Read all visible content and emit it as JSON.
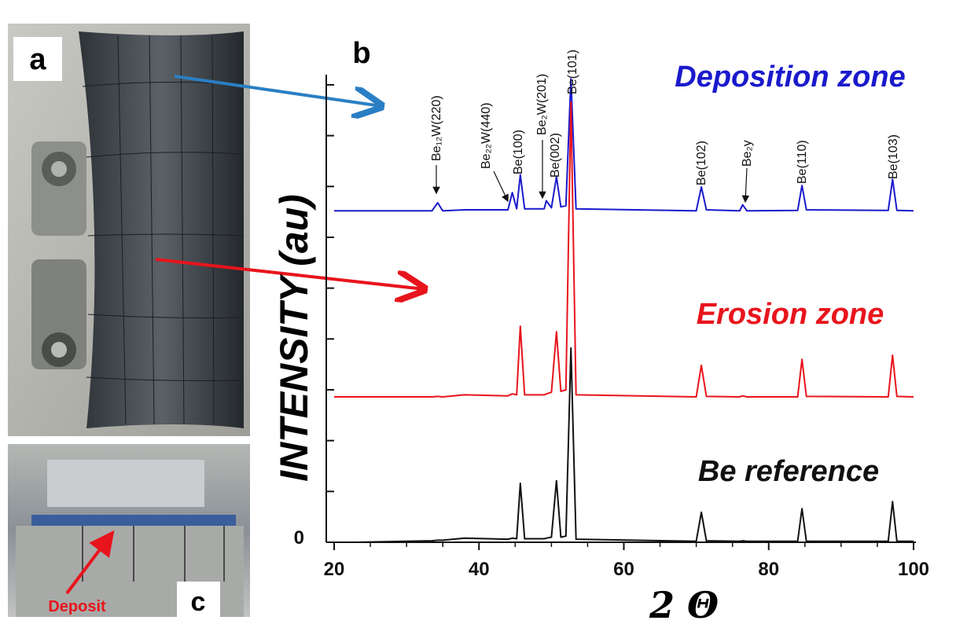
{
  "chart_data": {
    "type": "line",
    "panel_labels": [
      "a",
      "b",
      "c"
    ],
    "photo_label": "Deposit",
    "xlabel": "2 Θ",
    "ylabel": "INTENSITY (au)",
    "x": [
      20,
      23,
      33.5,
      34.3,
      35,
      38,
      44,
      44.6,
      45.2,
      45.7,
      46.3,
      49,
      49.3,
      50,
      50.7,
      51.3,
      52,
      52.7,
      53.4,
      70,
      70.7,
      71.4,
      76,
      76.4,
      77,
      84,
      84.6,
      85.2,
      96.5,
      97.1,
      97.7,
      100
    ],
    "series": [
      {
        "name": "Deposition zone",
        "color": "#1a1acc",
        "values": [
          6.52,
          6.52,
          6.52,
          6.68,
          6.52,
          6.54,
          6.54,
          6.88,
          6.56,
          7.23,
          6.56,
          6.56,
          6.72,
          6.58,
          7.19,
          6.6,
          6.62,
          9.12,
          6.56,
          6.52,
          6.99,
          6.54,
          6.52,
          6.64,
          6.52,
          6.53,
          7.02,
          6.54,
          6.53,
          7.14,
          6.53,
          6.52
        ]
      },
      {
        "name": "Erosion zone",
        "color": "#e8141c",
        "values": [
          2.86,
          2.86,
          2.86,
          2.87,
          2.86,
          2.9,
          2.88,
          2.92,
          2.9,
          4.25,
          2.9,
          2.9,
          2.92,
          2.95,
          4.14,
          2.97,
          3.0,
          8.66,
          2.9,
          2.86,
          3.48,
          2.87,
          2.86,
          2.88,
          2.86,
          2.86,
          3.6,
          2.87,
          2.86,
          3.68,
          2.87,
          2.86
        ]
      },
      {
        "name": "Be reference",
        "color": "#111111",
        "values": [
          null,
          0.0,
          0.03,
          0.04,
          0.04,
          0.08,
          0.06,
          0.08,
          0.07,
          1.16,
          0.07,
          0.07,
          0.08,
          0.1,
          1.21,
          0.1,
          0.12,
          3.82,
          0.06,
          0.02,
          0.59,
          0.03,
          0.02,
          0.03,
          0.02,
          0.02,
          0.66,
          0.02,
          0.02,
          0.8,
          0.02,
          0.02
        ]
      }
    ],
    "annotations": [
      "Be₁₂W(220)",
      "Be₂₂W(440)",
      "Be(100)",
      "Be₂W(201)",
      "Be(002)",
      "Be(101)",
      "Be(102)",
      "Be₂y",
      "Be(110)",
      "Be(103)"
    ],
    "xlim": [
      20,
      100
    ],
    "xticks": [
      20,
      40,
      60,
      80,
      100
    ],
    "xminorticks": [
      25,
      30,
      35,
      45,
      50,
      55,
      65,
      70,
      75,
      85,
      90,
      95
    ],
    "ylim": [
      0,
      9.2
    ],
    "yticks": [
      0
    ],
    "yminorticks": [
      1,
      2,
      3,
      4,
      5,
      6,
      7,
      8,
      9
    ]
  }
}
